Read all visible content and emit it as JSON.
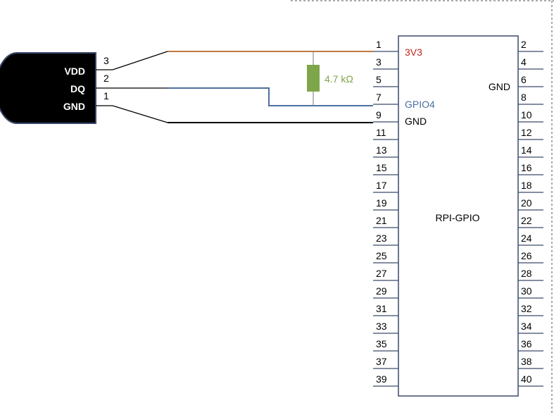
{
  "sensor": {
    "pins": [
      {
        "label": "VDD",
        "lead": "3"
      },
      {
        "label": "DQ",
        "lead": "2"
      },
      {
        "label": "GND",
        "lead": "1"
      }
    ],
    "body_color": "#000000",
    "outline_color": "#3b4a6b"
  },
  "resistor": {
    "value_label": "4.7 kΩ",
    "color": "#7ea54a"
  },
  "board": {
    "name": "RPI-GPIO",
    "left_pins": [
      "1",
      "3",
      "5",
      "7",
      "9",
      "11",
      "13",
      "15",
      "17",
      "19",
      "21",
      "23",
      "25",
      "27",
      "29",
      "31",
      "33",
      "35",
      "37",
      "39"
    ],
    "right_pins": [
      "2",
      "4",
      "6",
      "8",
      "10",
      "12",
      "14",
      "16",
      "18",
      "20",
      "22",
      "24",
      "26",
      "28",
      "30",
      "32",
      "34",
      "36",
      "38",
      "40"
    ],
    "signal_labels": {
      "v3": "3V3",
      "gpio4": "GPIO4",
      "gnd_left": "GND",
      "gnd_right": "GND"
    },
    "outline_color": "#3b4a6b"
  },
  "wire_colors": {
    "vdd": "#c0783e",
    "dq": "#4d6fa0",
    "gnd": "#000000"
  },
  "text_colors": {
    "v3": "#c0251c",
    "gpio4": "#4d6fa0",
    "gnd": "#000000"
  }
}
